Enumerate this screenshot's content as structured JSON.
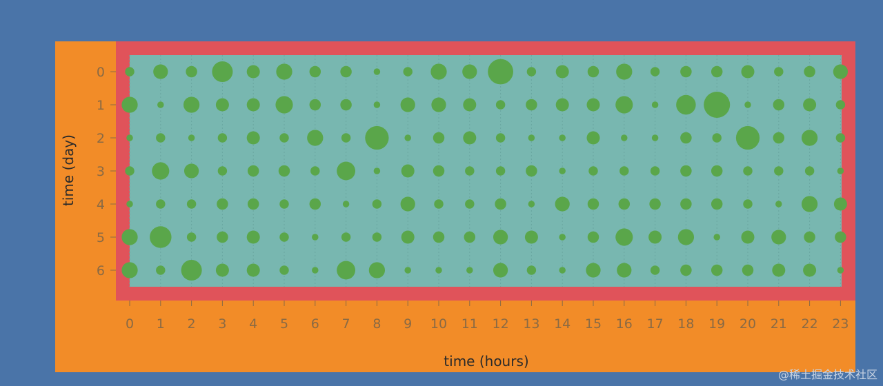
{
  "chart_data": {
    "type": "scatter",
    "xlabel": "time (hours)",
    "ylabel": "time (day)",
    "x_ticks": [
      "0",
      "1",
      "2",
      "3",
      "4",
      "5",
      "6",
      "7",
      "8",
      "9",
      "10",
      "11",
      "12",
      "13",
      "14",
      "15",
      "16",
      "17",
      "18",
      "19",
      "20",
      "21",
      "22",
      "23"
    ],
    "y_ticks": [
      "0",
      "1",
      "2",
      "3",
      "4",
      "5",
      "6"
    ],
    "xlim": [
      0,
      23
    ],
    "ylim": [
      0,
      6
    ],
    "grid": false,
    "legend": "none",
    "value_range": [
      0,
      10
    ],
    "values": [
      [
        2,
        5,
        3,
        10,
        4,
        6,
        3,
        3,
        1,
        2,
        6,
        5,
        15,
        2,
        4,
        3,
        6,
        2,
        3,
        3,
        4,
        2,
        3,
        5
      ],
      [
        6,
        1,
        6,
        4,
        4,
        7,
        3,
        3,
        1,
        5,
        5,
        4,
        2,
        3,
        4,
        4,
        7,
        1,
        9,
        16,
        1,
        3,
        4,
        2
      ],
      [
        1,
        2,
        1,
        2,
        4,
        2,
        6,
        2,
        13,
        1,
        3,
        4,
        2,
        1,
        1,
        4,
        1,
        1,
        3,
        2,
        13,
        3,
        6,
        2
      ],
      [
        2,
        7,
        5,
        2,
        3,
        3,
        2,
        8,
        1,
        4,
        3,
        2,
        2,
        3,
        1,
        2,
        2,
        2,
        3,
        3,
        2,
        2,
        2,
        1
      ],
      [
        1,
        2,
        2,
        3,
        3,
        2,
        3,
        1,
        2,
        5,
        2,
        2,
        3,
        1,
        5,
        3,
        3,
        3,
        3,
        3,
        2,
        1,
        6,
        4
      ],
      [
        6,
        11,
        2,
        3,
        4,
        2,
        1,
        2,
        2,
        4,
        3,
        3,
        5,
        4,
        1,
        3,
        7,
        4,
        6,
        1,
        4,
        5,
        3,
        3
      ],
      [
        6,
        2,
        10,
        4,
        4,
        2,
        1,
        8,
        6,
        1,
        1,
        1,
        5,
        2,
        1,
        5,
        5,
        2,
        3,
        3,
        3,
        4,
        4,
        1
      ]
    ],
    "colors": {
      "outer_background": "#4a74a8",
      "frame": "#f28c28",
      "plot_border": "#e0535a",
      "plot_area": "#78b7b0",
      "bubble": "#5aa64a"
    }
  },
  "watermark": "@稀土掘金技术社区"
}
